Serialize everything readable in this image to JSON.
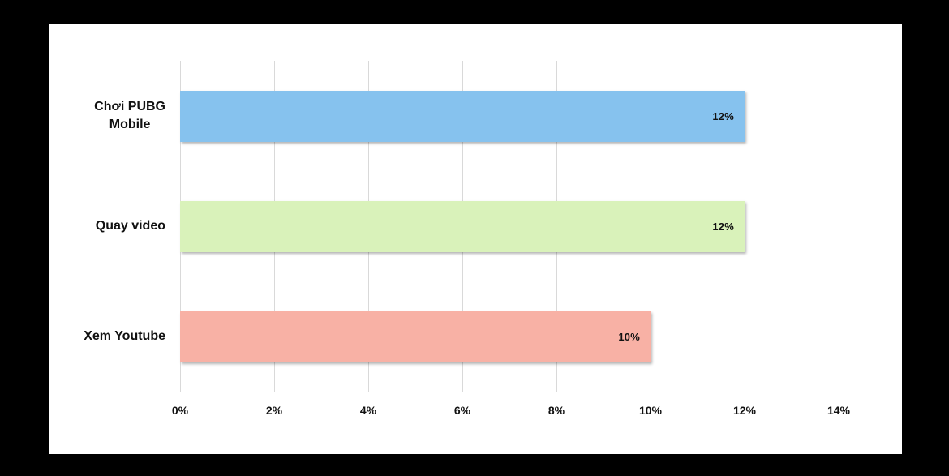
{
  "page": {
    "background_color": "#000000"
  },
  "chart_data": {
    "type": "bar",
    "orientation": "horizontal",
    "title": "",
    "xlabel": "",
    "ylabel": "",
    "categories": [
      "Chơi PUBG\nMobile",
      "Quay video",
      "Xem Youtube"
    ],
    "values": [
      12,
      12,
      10
    ],
    "value_labels": [
      "12%",
      "12%",
      "10%"
    ],
    "bar_colors": [
      "#86C2EE",
      "#D9F2BA",
      "#F8B1A5"
    ],
    "x_tick_values": [
      0,
      2,
      4,
      6,
      8,
      10,
      12,
      14
    ],
    "x_tick_labels": [
      "0%",
      "2%",
      "4%",
      "6%",
      "8%",
      "10%",
      "12%",
      "14%"
    ],
    "xlim": [
      0,
      14
    ],
    "grid": "vertical",
    "legend": "none",
    "colors": {
      "chart_background": "#ffffff",
      "gridline": "#d9d9d9",
      "text": "#111111"
    }
  }
}
